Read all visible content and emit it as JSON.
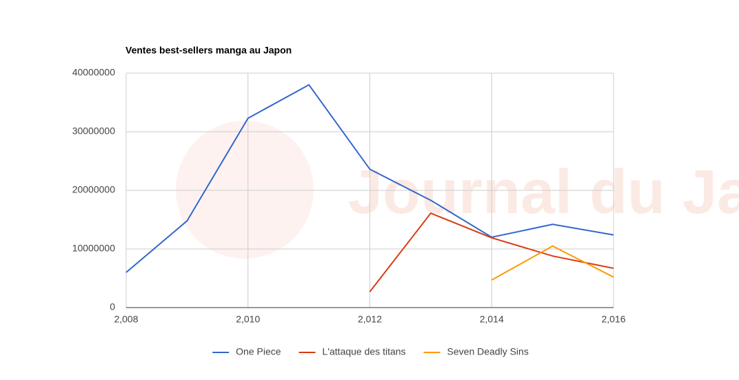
{
  "chart_data": {
    "type": "line",
    "title": "Ventes best-sellers manga au Japon",
    "watermark": "Journal du Japon",
    "x": [
      2008,
      2009,
      2010,
      2011,
      2012,
      2013,
      2014,
      2015,
      2016
    ],
    "xlim": [
      2008,
      2016
    ],
    "xticks": [
      {
        "value": 2008,
        "label": "2,008"
      },
      {
        "value": 2010,
        "label": "2,010"
      },
      {
        "value": 2012,
        "label": "2,012"
      },
      {
        "value": 2014,
        "label": "2,014"
      },
      {
        "value": 2016,
        "label": "2,016"
      }
    ],
    "ylim": [
      0,
      40000000
    ],
    "yticks": [
      0,
      10000000,
      20000000,
      30000000,
      40000000
    ],
    "grid": true,
    "legend": "bottom",
    "series": [
      {
        "name": "One Piece",
        "color": "#3366cc",
        "values": [
          6000000,
          14800000,
          32300000,
          38000000,
          23600000,
          18300000,
          12000000,
          14200000,
          12400000
        ]
      },
      {
        "name": "L'attaque des titans",
        "color": "#dc3912",
        "values": [
          null,
          null,
          null,
          null,
          2700000,
          16100000,
          11900000,
          8800000,
          6700000
        ]
      },
      {
        "name": "Seven Deadly Sins",
        "color": "#ff9900",
        "values": [
          null,
          null,
          null,
          null,
          null,
          null,
          4700000,
          10500000,
          5200000
        ]
      }
    ]
  }
}
